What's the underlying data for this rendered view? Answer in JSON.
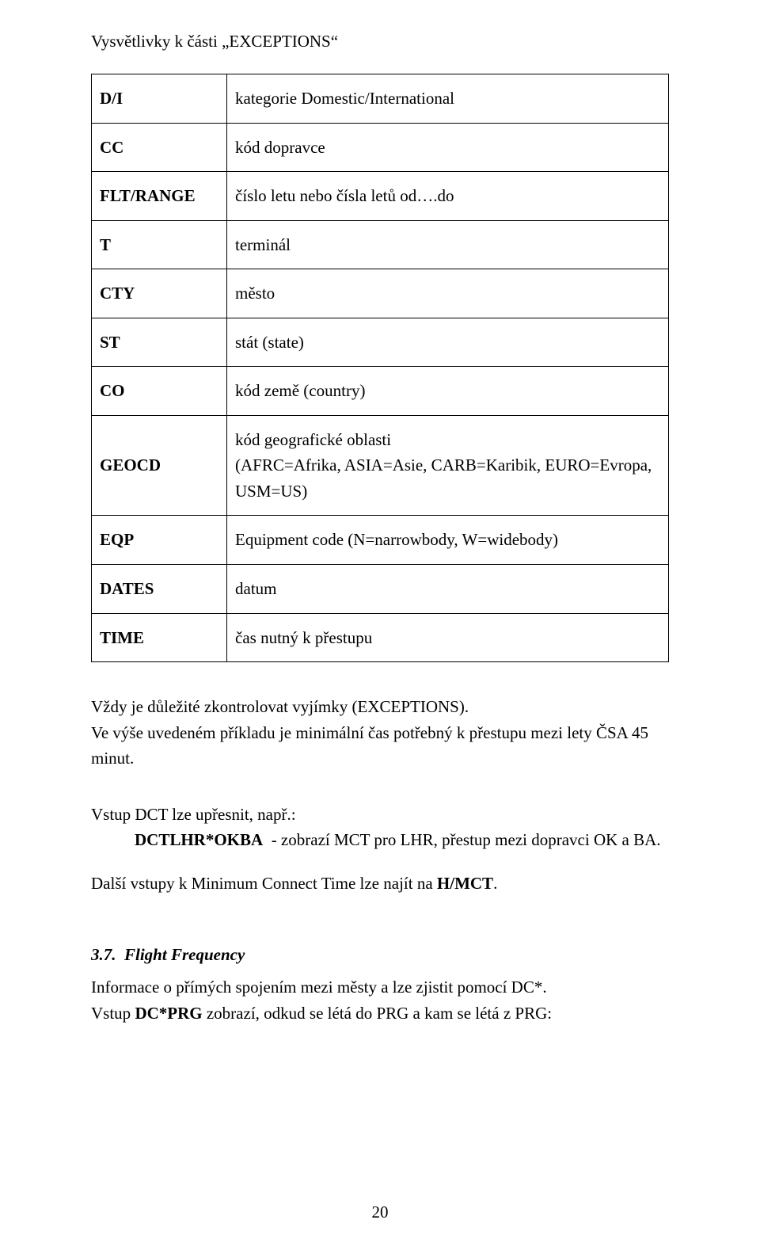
{
  "heading": "Vysvětlivky k části „EXCEPTIONS“",
  "table": {
    "rows": [
      {
        "key": "D/I",
        "val": "kategorie Domestic/International"
      },
      {
        "key": "CC",
        "val": "kód dopravce"
      },
      {
        "key": "FLT/RANGE",
        "val": "číslo letu nebo čísla letů od….do"
      },
      {
        "key": "T",
        "val": "terminál"
      },
      {
        "key": "CTY",
        "val": "město"
      },
      {
        "key": "ST",
        "val": "stát (state)"
      },
      {
        "key": "CO",
        "val": "kód země (country)"
      },
      {
        "key": "GEOCD",
        "val": "kód geografické oblasti\n(AFRC=Afrika, ASIA=Asie, CARB=Karibik, EURO=Evropa, USM=US)"
      },
      {
        "key": "EQP",
        "val": "Equipment code (N=narrowbody, W=widebody)"
      },
      {
        "key": "DATES",
        "val": "datum"
      },
      {
        "key": "TIME",
        "val": "čas nutný k přestupu"
      }
    ]
  },
  "p1_a": "Vždy je důležité zkontrolovat vyjímky (EXCEPTIONS).",
  "p1_b": "Ve výše uvedeném příkladu je minimální čas potřebný k přestupu mezi lety ČSA 45 minut.",
  "p2": "Vstup DCT lze upřesnit, např.:",
  "p2_cmd": "DCTLHR*OKBA",
  "p2_rest": "  - zobrazí MCT pro LHR, přestup mezi dopravci OK a BA.",
  "p3_a": "Další vstupy k Minimum Connect Time lze najít na ",
  "p3_b": "H/MCT",
  "p3_c": ".",
  "sec_num": "3.7.  ",
  "sec_title": "Flight Frequency",
  "p4_a": "Informace o přímých spojením mezi městy a  lze zjistit pomocí DC*.",
  "p4_b1": "Vstup ",
  "p4_b2": "DC*PRG",
  "p4_b3": " zobrazí, odkud se létá do PRG a kam se létá z PRG:",
  "pagenum": "20"
}
